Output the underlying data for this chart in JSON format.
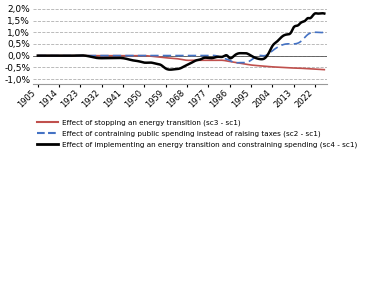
{
  "x_tick_labels": [
    "1905",
    "1914",
    "1923",
    "1932",
    "1941",
    "1950",
    "1959",
    "1968",
    "1977",
    "1986",
    "1995",
    "2004",
    "2013",
    "2022"
  ],
  "x_tick_positions": [
    1905,
    1914,
    1923,
    1932,
    1941,
    1950,
    1959,
    1968,
    1977,
    1986,
    1995,
    2004,
    2013,
    2022
  ],
  "yticks": [
    -0.01,
    -0.005,
    0.0,
    0.005,
    0.01,
    0.015,
    0.02
  ],
  "ytick_labels": [
    "-1,0%",
    "-0,5%",
    "0,0%",
    "0,5%",
    "1,0%",
    "1,5%",
    "2,0%"
  ],
  "background_color": "#ffffff",
  "grid_color": "#b0b0b0",
  "sc1_color": "#c0504d",
  "sc2_color": "#4472c4",
  "sc4_color": "#000000",
  "legend_labels": [
    "Effect of stopping an energy transition (sc3 - sc1)",
    "Effect of contraining public spending instead of raising taxes (sc2 - sc1)",
    "Effect of implementing an energy transition and constraining spending (sc4 - sc1)"
  ],
  "sc1_x": [
    1905,
    1910,
    1915,
    1920,
    1925,
    1930,
    1935,
    1940,
    1945,
    1950,
    1955,
    1960,
    1965,
    1968,
    1970,
    1975,
    1977,
    1980,
    1983,
    1986,
    1989,
    1992,
    1995,
    1998,
    2001,
    2004,
    2007,
    2010,
    2013,
    2016,
    2019,
    2022,
    2026
  ],
  "sc1_y": [
    0.0,
    0.0,
    0.0,
    0.0,
    0.0,
    0.0,
    0.0,
    0.0,
    0.0,
    0.0,
    -0.0005,
    -0.001,
    -0.0015,
    -0.002,
    -0.002,
    -0.002,
    -0.002,
    -0.002,
    -0.002,
    -0.0025,
    -0.003,
    -0.0035,
    -0.004,
    -0.0043,
    -0.0046,
    -0.0048,
    -0.005,
    -0.0052,
    -0.0053,
    -0.0054,
    -0.0056,
    -0.0058,
    -0.006
  ],
  "sc2_x": [
    1905,
    1910,
    1915,
    1920,
    1925,
    1930,
    1935,
    1940,
    1945,
    1950,
    1955,
    1960,
    1965,
    1968,
    1970,
    1975,
    1977,
    1980,
    1983,
    1986,
    1988,
    1990,
    1992,
    1995,
    1998,
    2001,
    2004,
    2007,
    2010,
    2013,
    2016,
    2019,
    2022,
    2026
  ],
  "sc2_y": [
    0.0,
    0.0,
    0.0,
    0.0,
    0.0,
    0.0,
    0.0,
    0.0,
    0.0,
    0.0,
    0.0,
    0.0,
    0.0,
    0.0,
    0.0,
    0.0,
    0.0,
    0.0,
    -0.001,
    -0.002,
    -0.003,
    -0.003,
    -0.003,
    -0.002,
    0.0,
    0.0,
    0.002,
    0.004,
    0.005,
    0.005,
    0.006,
    0.009,
    0.01,
    0.01
  ],
  "sc4_x": [
    1905,
    1910,
    1915,
    1920,
    1925,
    1930,
    1935,
    1937,
    1940,
    1943,
    1945,
    1948,
    1950,
    1953,
    1955,
    1957,
    1959,
    1961,
    1963,
    1965,
    1967,
    1968,
    1970,
    1972,
    1974,
    1975,
    1977,
    1979,
    1981,
    1983,
    1985,
    1986,
    1988,
    1990,
    1992,
    1993,
    1995,
    1997,
    1999,
    2001,
    2003,
    2004,
    2006,
    2008,
    2010,
    2012,
    2013,
    2015,
    2016,
    2018,
    2019,
    2020,
    2022,
    2023,
    2024,
    2026
  ],
  "sc4_y": [
    0.0,
    0.0,
    0.0,
    0.0,
    0.0,
    -0.001,
    -0.001,
    -0.001,
    -0.001,
    -0.0015,
    -0.002,
    -0.0025,
    -0.003,
    -0.003,
    -0.0035,
    -0.004,
    -0.0055,
    -0.006,
    -0.0058,
    -0.0055,
    -0.0045,
    -0.004,
    -0.003,
    -0.002,
    -0.0015,
    -0.001,
    -0.001,
    -0.001,
    -0.0005,
    -0.0005,
    0.0,
    -0.001,
    0.0,
    0.001,
    0.001,
    0.001,
    0.0,
    -0.001,
    -0.0015,
    -0.001,
    0.002,
    0.004,
    0.006,
    0.008,
    0.009,
    0.01,
    0.012,
    0.013,
    0.014,
    0.015,
    0.016,
    0.016,
    0.018,
    0.018,
    0.018,
    0.018
  ]
}
